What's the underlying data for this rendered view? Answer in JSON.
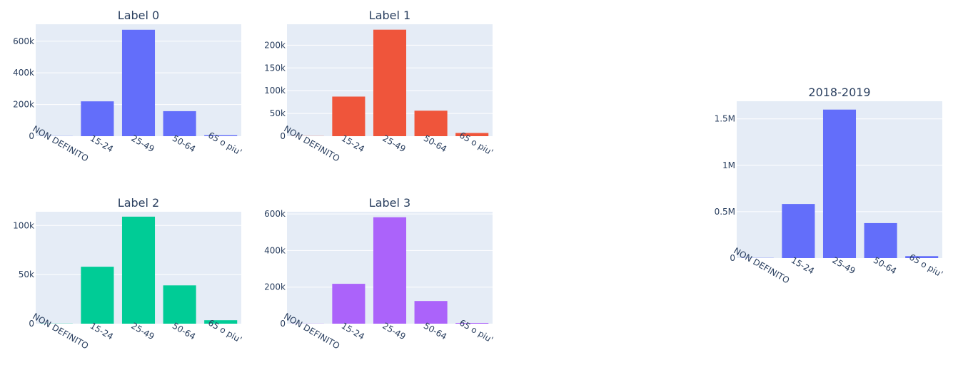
{
  "colors": {
    "plot_bg": "#e5ecf6",
    "grid": "#ffffff",
    "text": "#2a3f5f"
  },
  "chart_data": [
    {
      "type": "bar",
      "title": "Label 0",
      "color": "#636efa",
      "categories": [
        "NON DEFINITO",
        "15-24",
        "25-49",
        "50-64",
        "65 o piu'"
      ],
      "values": [
        800,
        220000,
        672000,
        158000,
        6000
      ],
      "ylim": [
        0,
        707000
      ],
      "yticks": [
        0,
        200000,
        400000,
        600000
      ],
      "ytick_labels": [
        "0",
        "200k",
        "400k",
        "600k"
      ],
      "grid": true,
      "xlabel": "",
      "ylabel": ""
    },
    {
      "type": "bar",
      "title": "Label 1",
      "color": "#ef553b",
      "categories": [
        "NON DEFINITO",
        "15-24",
        "25-49",
        "50-64",
        "65 o piu'"
      ],
      "values": [
        300,
        87000,
        234000,
        56000,
        7000
      ],
      "ylim": [
        0,
        246000
      ],
      "yticks": [
        0,
        50000,
        100000,
        150000,
        200000
      ],
      "ytick_labels": [
        "0",
        "50k",
        "100k",
        "150k",
        "200k"
      ],
      "grid": true,
      "xlabel": "",
      "ylabel": ""
    },
    {
      "type": "bar",
      "title": "Label 2",
      "color": "#00cc96",
      "categories": [
        "NON DEFINITO",
        "15-24",
        "25-49",
        "50-64",
        "65 o piu'"
      ],
      "values": [
        150,
        58000,
        109000,
        39000,
        3500
      ],
      "ylim": [
        0,
        114000
      ],
      "yticks": [
        0,
        50000,
        100000
      ],
      "ytick_labels": [
        "0",
        "50k",
        "100k"
      ],
      "grid": true,
      "xlabel": "",
      "ylabel": ""
    },
    {
      "type": "bar",
      "title": "Label 3",
      "color": "#ab63fa",
      "categories": [
        "NON DEFINITO",
        "15-24",
        "25-49",
        "50-64",
        "65 o piu'"
      ],
      "values": [
        600,
        218000,
        582000,
        124000,
        4000
      ],
      "ylim": [
        0,
        612000
      ],
      "yticks": [
        0,
        200000,
        400000,
        600000
      ],
      "ytick_labels": [
        "0",
        "200k",
        "400k",
        "600k"
      ],
      "grid": true,
      "xlabel": "",
      "ylabel": ""
    },
    {
      "type": "bar",
      "title": "2018-2019",
      "color": "#636efa",
      "categories": [
        "NON DEFINITO",
        "15-24",
        "25-49",
        "50-64",
        "65 o piu'"
      ],
      "values": [
        2000,
        583000,
        1600000,
        377000,
        21000
      ],
      "ylim": [
        0,
        1690000
      ],
      "yticks": [
        0,
        500000,
        1000000,
        1500000
      ],
      "ytick_labels": [
        "0",
        "0.5M",
        "1M",
        "1.5M"
      ],
      "grid": true,
      "xlabel": "",
      "ylabel": ""
    }
  ]
}
